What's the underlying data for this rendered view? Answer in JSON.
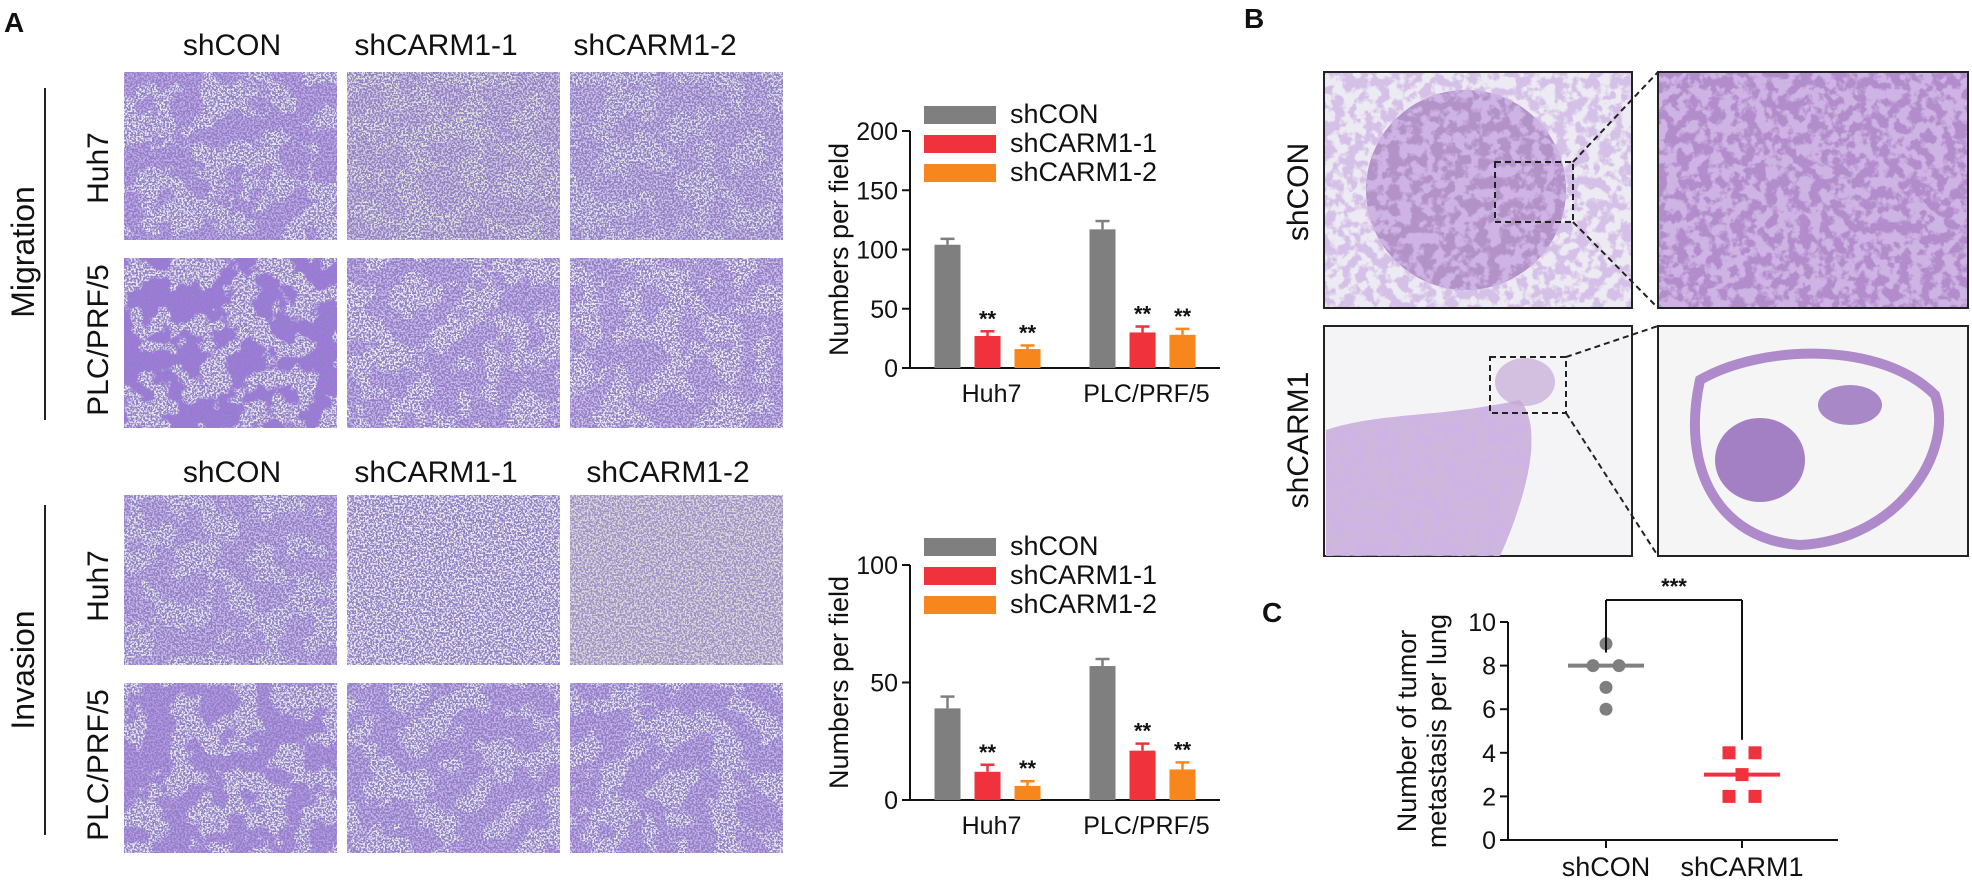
{
  "panels": {
    "a": "A",
    "b": "B",
    "c": "C"
  },
  "panelA": {
    "sections": [
      {
        "title": "Migration",
        "col_headers": [
          "shCON",
          "shCARM1-1",
          "shCARM1-2"
        ],
        "row_headers": [
          "Huh7",
          "PLC/PRF/5"
        ]
      },
      {
        "title": "Invasion",
        "col_headers": [
          "shCON",
          "shCARM1-1",
          "shCARM1-2"
        ],
        "row_headers": [
          "Huh7",
          "PLC/PRF/5"
        ]
      }
    ]
  },
  "panelB": {
    "row_headers": [
      "shCON",
      "shCARM1"
    ]
  },
  "colors": {
    "shCON": "#7f7f7f",
    "shCARM1-1": "#f0323c",
    "shCARM1-2": "#f7861d",
    "stain": "#6a3fc0"
  },
  "chart_data": [
    {
      "type": "bar",
      "panel": "A-migration",
      "categories": [
        "Huh7",
        "PLC/PRF/5"
      ],
      "series": [
        {
          "name": "shCON",
          "values": [
            104,
            117
          ],
          "errors": [
            5,
            7
          ],
          "sig": [
            "",
            ""
          ]
        },
        {
          "name": "shCARM1-1",
          "values": [
            27,
            30
          ],
          "errors": [
            4,
            5
          ],
          "sig": [
            "**",
            "**"
          ]
        },
        {
          "name": "shCARM1-2",
          "values": [
            16,
            28
          ],
          "errors": [
            3,
            5
          ],
          "sig": [
            "**",
            "**"
          ]
        }
      ],
      "ylabel": "Numbers per field",
      "ylim": [
        0,
        200
      ],
      "yticks": [
        0,
        50,
        100,
        150,
        200
      ],
      "legend": "top-right"
    },
    {
      "type": "bar",
      "panel": "A-invasion",
      "categories": [
        "Huh7",
        "PLC/PRF/5"
      ],
      "series": [
        {
          "name": "shCON",
          "values": [
            39,
            57
          ],
          "errors": [
            5,
            3
          ],
          "sig": [
            "",
            ""
          ]
        },
        {
          "name": "shCARM1-1",
          "values": [
            12,
            21
          ],
          "errors": [
            3,
            3
          ],
          "sig": [
            "**",
            "**"
          ]
        },
        {
          "name": "shCARM1-2",
          "values": [
            6,
            13
          ],
          "errors": [
            2,
            3
          ],
          "sig": [
            "**",
            "**"
          ]
        }
      ],
      "ylabel": "Numbers per field",
      "ylim": [
        0,
        100
      ],
      "yticks": [
        0,
        50,
        100
      ],
      "legend": "top-right"
    },
    {
      "type": "scatter",
      "panel": "C",
      "categories": [
        "shCON",
        "shCARM1"
      ],
      "series": [
        {
          "name": "shCON",
          "values": [
            9,
            8,
            8,
            7,
            6
          ],
          "mean": 8
        },
        {
          "name": "shCARM1",
          "values": [
            4,
            4,
            3,
            2,
            2
          ],
          "mean": 3
        }
      ],
      "ylabel": "Number of tumor metastasis per lung",
      "ylim": [
        0,
        10
      ],
      "yticks": [
        0,
        2,
        4,
        6,
        8,
        10
      ],
      "significance": "***"
    }
  ]
}
